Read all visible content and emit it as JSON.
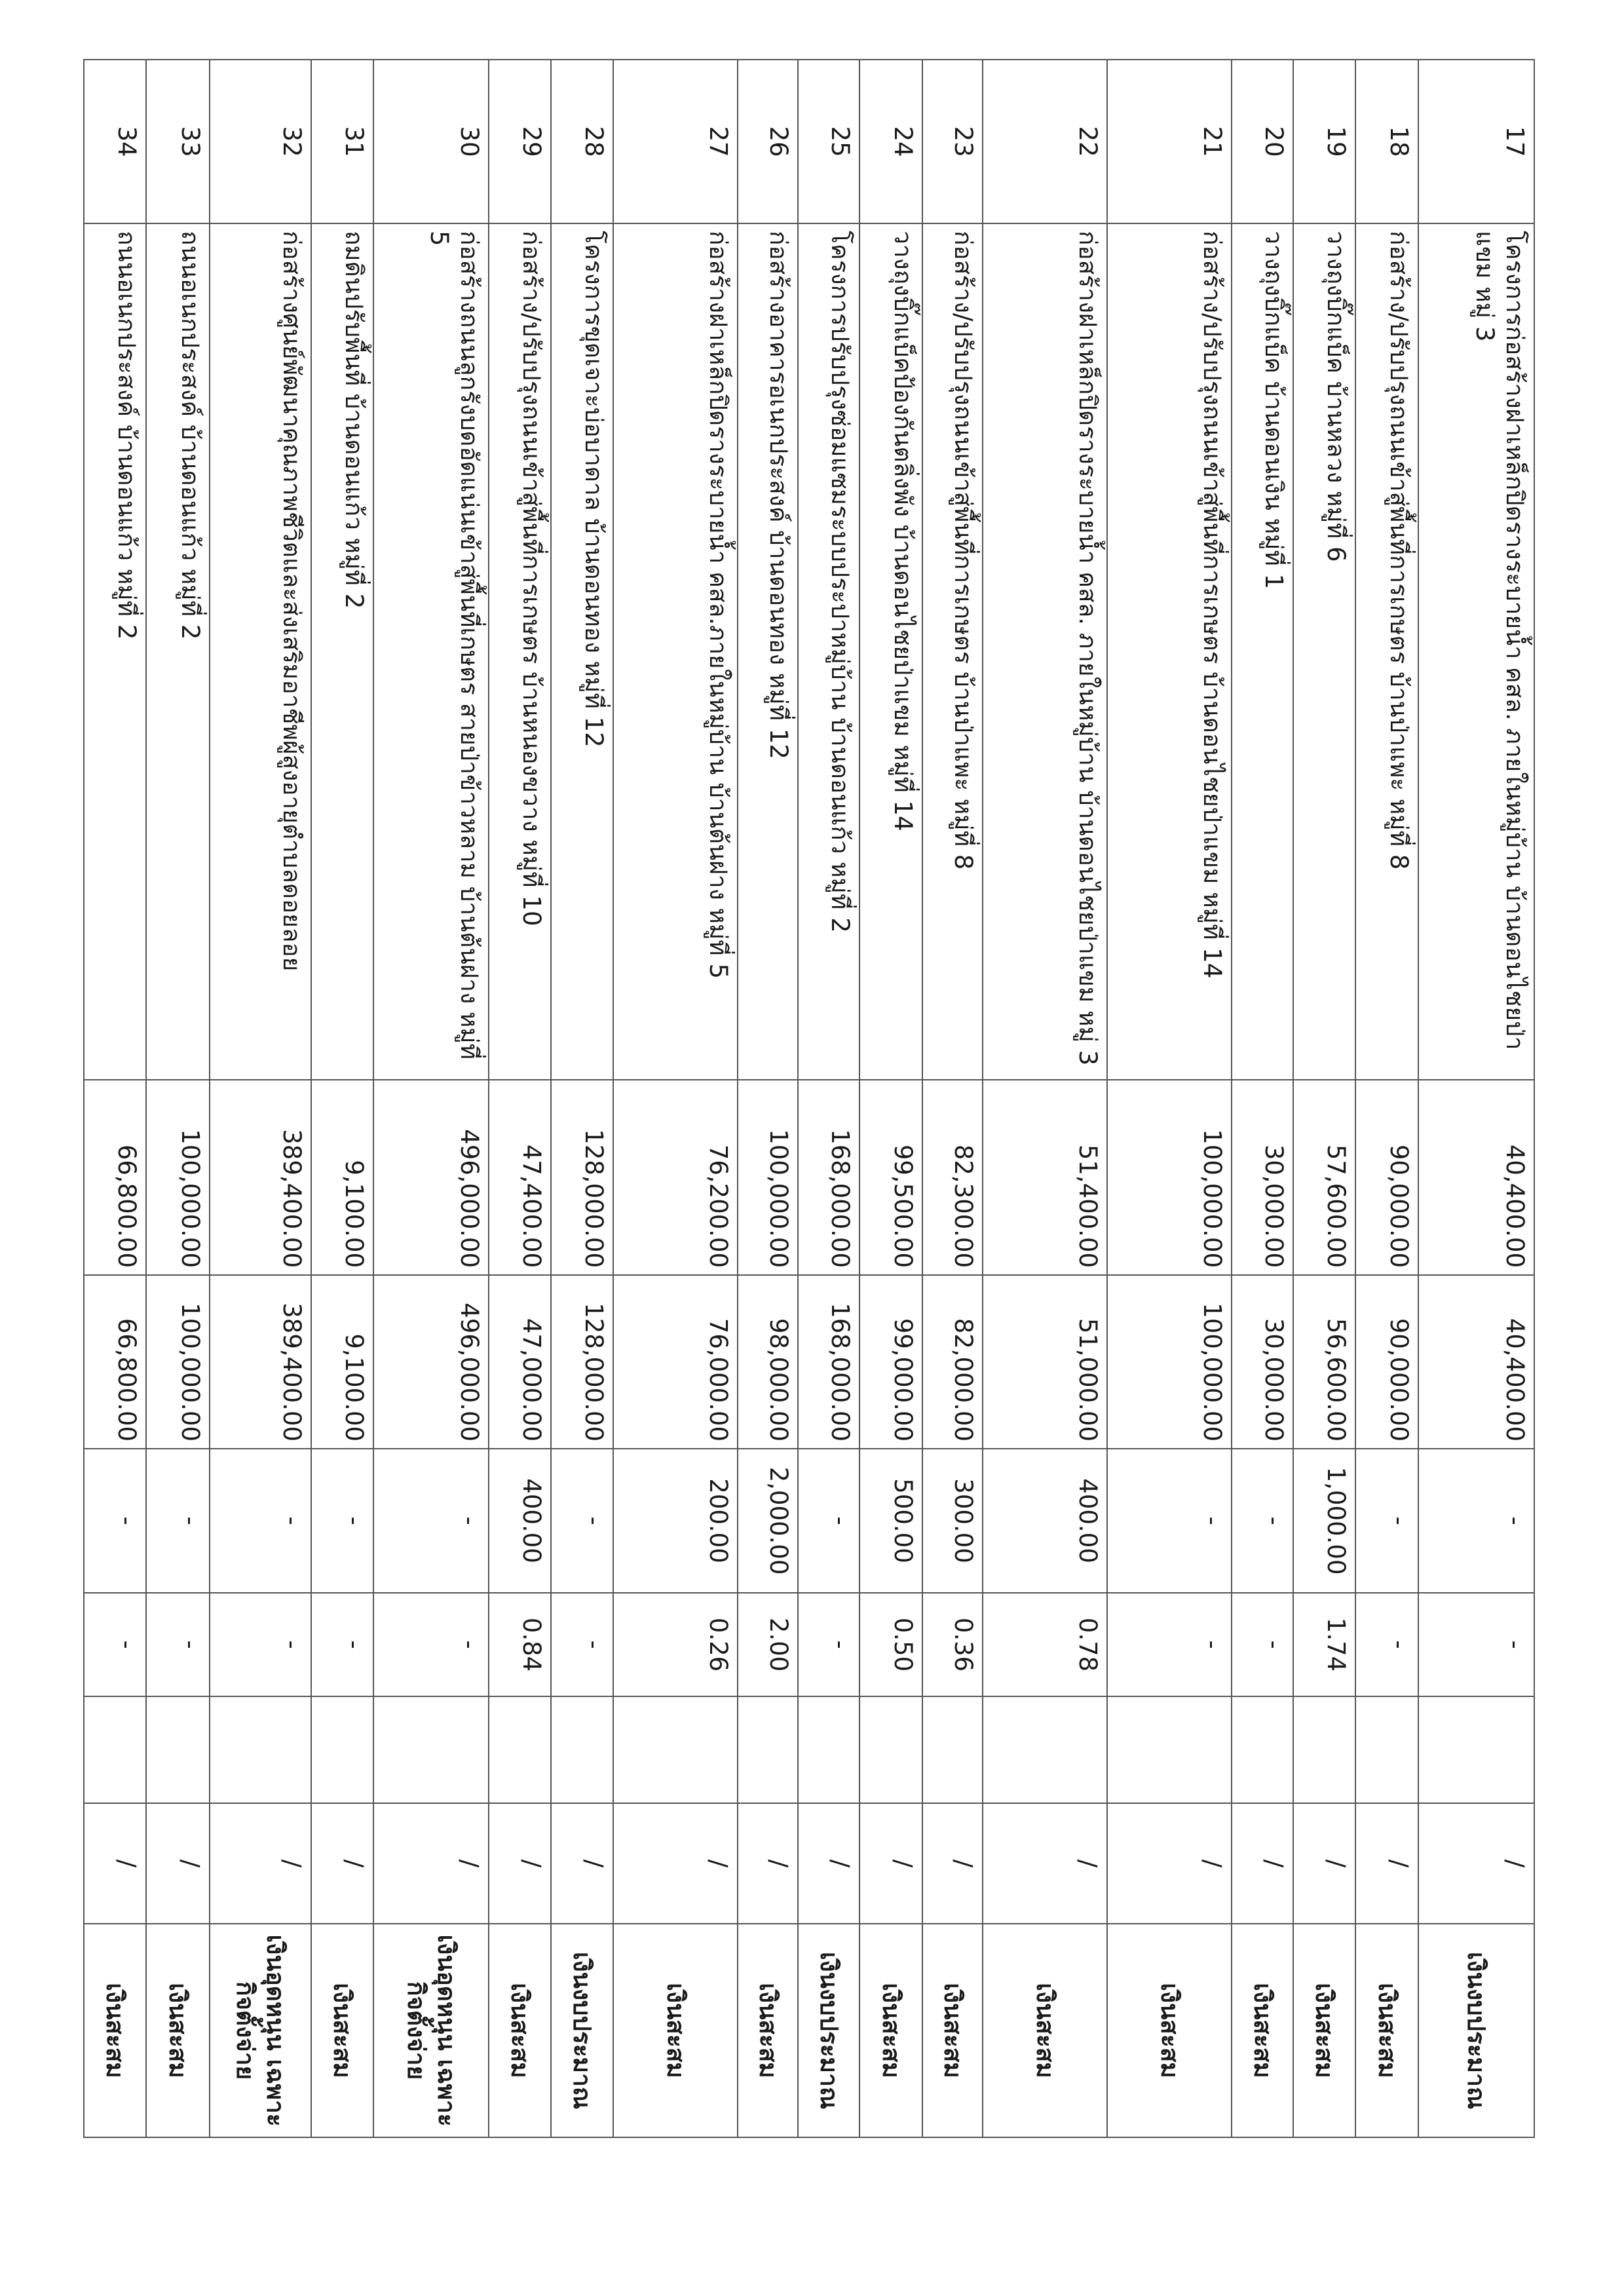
{
  "rows": [
    {
      "no": "17",
      "project": "โครงการก่อสร้างฝาเหล็กปิดรางระบายน้ำ คสล. ภายในหมู่บ้าน บ้านดอนไชยป่าแขม หมู่ 3",
      "budget": "40,400.00",
      "contract": "40,400.00",
      "saving": "-",
      "percent": "-",
      "blank": "",
      "check": "/",
      "source": "เงินงบประมาณ"
    },
    {
      "no": "18",
      "project": "ก่อสร้าง/ปรับปรุงถนนเข้าสู่พื้นที่การเกษตร บ้านป่าแพะ หมู่ที่ 8",
      "budget": "90,000.00",
      "contract": "90,000.00",
      "saving": "-",
      "percent": "-",
      "blank": "",
      "check": "/",
      "source": "เงินสะสม"
    },
    {
      "no": "19",
      "project": "วางถุงบิ๊กแบ็ค บ้านหลวง หมู่ที่ 6",
      "budget": "57,600.00",
      "contract": "56,600.00",
      "saving": "1,000.00",
      "percent": "1.74",
      "blank": "",
      "check": "/",
      "source": "เงินสะสม"
    },
    {
      "no": "20",
      "project": "วางถุงบิ๊กแบ็ค บ้านดอนเงิน หมู่ที่ 1",
      "budget": "30,000.00",
      "contract": "30,000.00",
      "saving": "-",
      "percent": "-",
      "blank": "",
      "check": "/",
      "source": "เงินสะสม"
    },
    {
      "no": "21",
      "project": "ก่อสร้าง/ปรับปรุงถนนเข้าสู่พื้นที่การเกษตร บ้านดอนไชยป่าแขม หมู่ที่ 14",
      "budget": "100,000.00",
      "contract": "100,000.00",
      "saving": "-",
      "percent": "-",
      "blank": "",
      "check": "/",
      "source": "เงินสะสม"
    },
    {
      "no": "22",
      "project": "ก่อสร้างฝาเหล็กปิดรางระบายน้ำ คสล. ภายในหมู่บ้าน บ้านดอนไชยป่าแขม หมู่ 3",
      "budget": "51,400.00",
      "contract": "51,000.00",
      "saving": "400.00",
      "percent": "0.78",
      "blank": "",
      "check": "/",
      "source": "เงินสะสม"
    },
    {
      "no": "23",
      "project": "ก่อสร้าง/ปรับปรุงถนนเข้าสู่พื้นที่การเกษตร บ้านป่าแพะ หมู่ที่ 8",
      "budget": "82,300.00",
      "contract": "82,000.00",
      "saving": "300.00",
      "percent": "0.36",
      "blank": "",
      "check": "/",
      "source": "เงินสะสม"
    },
    {
      "no": "24",
      "project": "วางถุงบิ๊กแบ็คป้องกันตลิ่งพัง บ้านดอนไชยป่าแขม หมู่ที่ 14",
      "budget": "99,500.00",
      "contract": "99,000.00",
      "saving": "500.00",
      "percent": "0.50",
      "blank": "",
      "check": "/",
      "source": "เงินสะสม"
    },
    {
      "no": "25",
      "project": "โครงการปรับปรุงซ่อมแซมระบบประปาหมู่บ้าน บ้านดอนแก้ว หมู่ที่ 2",
      "budget": "168,000.00",
      "contract": "168,000.00",
      "saving": "-",
      "percent": "-",
      "blank": "",
      "check": "/",
      "source": "เงินงบประมาณ"
    },
    {
      "no": "26",
      "project": "ก่อสร้างอาคารอเนกประสงค์ บ้านดอนทอง หมู่ที่ 12",
      "budget": "100,000.00",
      "contract": "98,000.00",
      "saving": "2,000.00",
      "percent": "2.00",
      "blank": "",
      "check": "/",
      "source": "เงินสะสม"
    },
    {
      "no": "27",
      "project": "ก่อสร้างฝาเหล็กปิดรางระบายน้ำ คสล.ภายในหมู่บ้าน บ้านต้นฝาง หมู่ที่ 5",
      "budget": "76,200.00",
      "contract": "76,000.00",
      "saving": "200.00",
      "percent": "0.26",
      "blank": "",
      "check": "/",
      "source": "เงินสะสม"
    },
    {
      "no": "28",
      "project": "โครงการขุดเจาะบ่อบาดาล บ้านดอนทอง หมู่ที่ 12",
      "budget": "128,000.00",
      "contract": "128,000.00",
      "saving": "-",
      "percent": "-",
      "blank": "",
      "check": "/",
      "source": "เงินงบประมาณ"
    },
    {
      "no": "29",
      "project": "ก่อสร้าง/ปรับปรุงถนนเข้าสู่พื้นที่การเกษตร บ้านหนองขวาง หมู่ที่ 10",
      "budget": "47,400.00",
      "contract": "47,000.00",
      "saving": "400.00",
      "percent": "0.84",
      "blank": "",
      "check": "/",
      "source": "เงินสะสม"
    },
    {
      "no": "30",
      "project": "ก่อสร้างถนนลูกรังบดอัดแน่นเข้าสู่พื้นที่เกษตร สายป่าข้าวหลาม บ้านต้นฝาง หมู่ที่ 5",
      "budget": "496,000.00",
      "contract": "496,000.00",
      "saving": "-",
      "percent": "-",
      "blank": "",
      "check": "/",
      "source": "เงินอุดหนุน เฉพาะกิจตั้งจ่าย"
    },
    {
      "no": "31",
      "project": "ถมดินปรับพื้นที่ บ้านดอนแก้ว หมู่ที่ 2",
      "budget": "9,100.00",
      "contract": "9,100.00",
      "saving": "-",
      "percent": "-",
      "blank": "",
      "check": "/",
      "source": "เงินสะสม"
    },
    {
      "no": "32",
      "project": "ก่อสร้างศูนย์พัฒนาคุณภาพชีวิตและส่งเสริมอาชีพผู้สูงอายุตำบลดอยลอย",
      "budget": "389,400.00",
      "contract": "389,400.00",
      "saving": "-",
      "percent": "-",
      "blank": "",
      "check": "/",
      "source": "เงินอุดหนุน เฉพาะกิจตั้งจ่าย"
    },
    {
      "no": "33",
      "project": "ถนนอเนกประสงค์ บ้านดอนแก้ว หมู่ที่ 2",
      "budget": "100,000.00",
      "contract": "100,000.00",
      "saving": "-",
      "percent": "-",
      "blank": "",
      "check": "/",
      "source": "เงินสะสม"
    },
    {
      "no": "34",
      "project": "ถนนอเนกประสงค์ บ้านดอนแก้ว หมู่ที่ 2",
      "budget": "66,800.00",
      "contract": "66,800.00",
      "saving": "-",
      "percent": "-",
      "blank": "",
      "check": "/",
      "source": "เงินสะสม"
    }
  ]
}
